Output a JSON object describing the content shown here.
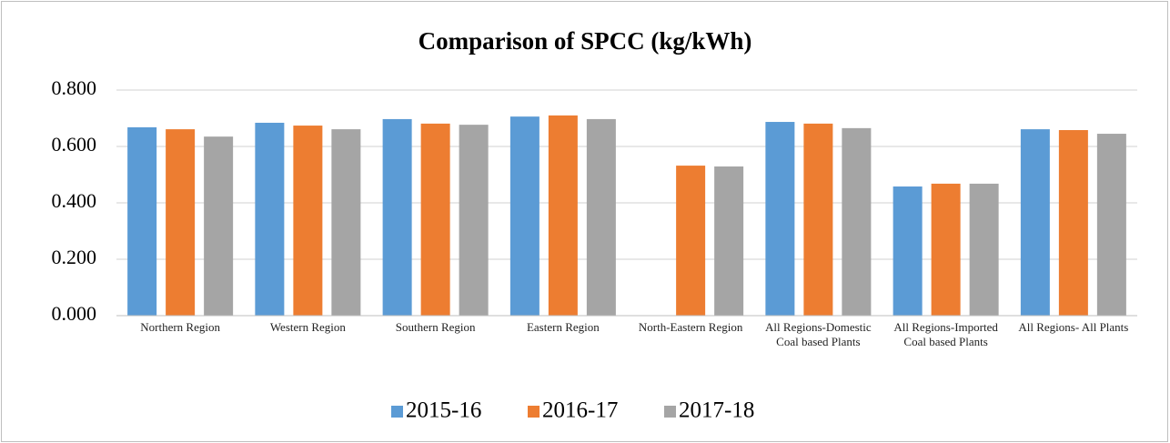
{
  "chart_data": {
    "type": "bar",
    "title": "Comparison of SPCC (kg/kWh)",
    "categories": [
      "Northern Region",
      "Western Region",
      "Southern Region",
      "Eastern Region",
      "North-Eastern Region",
      "All Regions-Domestic Coal based Plants",
      "All Regions-Imported Coal based Plants",
      "All Regions- All Plants"
    ],
    "series": [
      {
        "name": "2015-16",
        "color": "#5b9bd5",
        "values": [
          0.668,
          0.684,
          0.697,
          0.706,
          null,
          0.687,
          0.458,
          0.661
        ]
      },
      {
        "name": "2016-17",
        "color": "#ed7d31",
        "values": [
          0.661,
          0.674,
          0.681,
          0.71,
          0.532,
          0.681,
          0.468,
          0.658
        ]
      },
      {
        "name": "2017-18",
        "color": "#a5a5a5",
        "values": [
          0.635,
          0.661,
          0.677,
          0.697,
          0.529,
          0.665,
          0.468,
          0.645
        ]
      }
    ],
    "ylim": [
      0,
      0.8
    ],
    "yticks": [
      {
        "value": 0,
        "label": "0.000"
      },
      {
        "value": 0.2,
        "label": "0.200"
      },
      {
        "value": 0.4,
        "label": "0.400"
      },
      {
        "value": 0.6,
        "label": "0.600"
      },
      {
        "value": 0.8,
        "label": "0.800"
      }
    ],
    "grid": true,
    "legend": "bottom"
  }
}
